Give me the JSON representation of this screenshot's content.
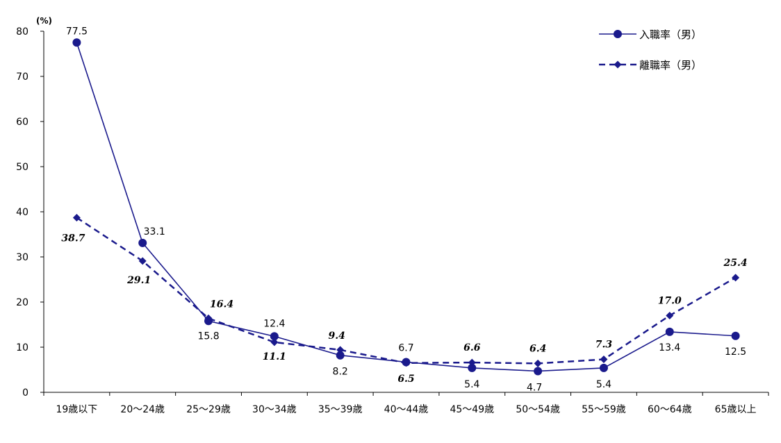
{
  "chart_data": {
    "type": "line",
    "unit_label": "(%)",
    "categories": [
      "19歳以下",
      "20～24歳",
      "25～29歳",
      "30～34歳",
      "35～39歳",
      "40～44歳",
      "45～49歳",
      "50～54歳",
      "55～59歳",
      "60～64歳",
      "65歳以上"
    ],
    "ylim": [
      0,
      80
    ],
    "yticks": [
      0,
      10,
      20,
      30,
      40,
      50,
      60,
      70,
      80
    ],
    "series": [
      {
        "name": "入職率（男）",
        "values": [
          77.5,
          33.1,
          15.8,
          12.4,
          8.2,
          6.7,
          5.4,
          4.7,
          5.4,
          13.4,
          12.5
        ],
        "labels": [
          "77.5",
          "33.1",
          "15.8",
          "12.4",
          "8.2",
          "6.7",
          "5.4",
          "4.7",
          "5.4",
          "13.4",
          "12.5"
        ],
        "color": "#1a1a8c",
        "style": "solid",
        "marker": "circle"
      },
      {
        "name": "離職率（男）",
        "values": [
          38.7,
          29.1,
          16.4,
          11.1,
          9.4,
          6.5,
          6.6,
          6.4,
          7.3,
          17.0,
          25.4
        ],
        "labels": [
          "38.7",
          "29.1",
          "16.4",
          "11.1",
          "9.4",
          "6.5",
          "6.6",
          "6.4",
          "7.3",
          "17.0",
          "25.4"
        ],
        "color": "#1a1a8c",
        "style": "dashed",
        "marker": "diamond"
      }
    ],
    "legend_position": "top-right",
    "grid": false
  }
}
